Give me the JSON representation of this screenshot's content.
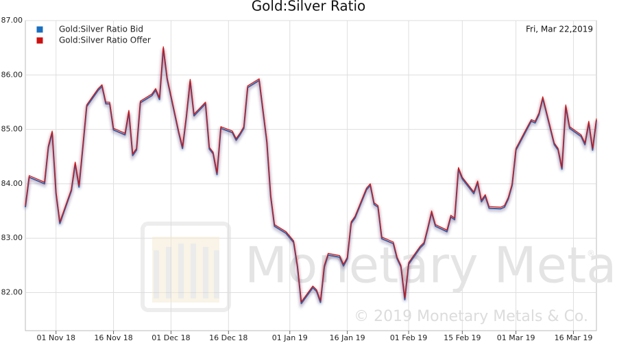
{
  "chart_data": {
    "type": "line",
    "title": "Gold:Silver Ratio",
    "date_label": "Fri, Mar 22,2019",
    "watermark": {
      "brand": "Monetary Metals",
      "registered": "®",
      "copyright": "© 2019 Monetary Metals & Co."
    },
    "legend": "top-left",
    "grid": true,
    "x": [
      "2018-10-24",
      "2018-10-25",
      "2018-10-26",
      "2018-10-29",
      "2018-10-30",
      "2018-10-31",
      "2018-11-01",
      "2018-11-02",
      "2018-11-05",
      "2018-11-06",
      "2018-11-07",
      "2018-11-08",
      "2018-11-09",
      "2018-11-12",
      "2018-11-13",
      "2018-11-14",
      "2018-11-15",
      "2018-11-16",
      "2018-11-19",
      "2018-11-20",
      "2018-11-21",
      "2018-11-22",
      "2018-11-23",
      "2018-11-26",
      "2018-11-27",
      "2018-11-28",
      "2018-11-29",
      "2018-11-30",
      "2018-12-03",
      "2018-12-04",
      "2018-12-05",
      "2018-12-06",
      "2018-12-07",
      "2018-12-10",
      "2018-12-11",
      "2018-12-12",
      "2018-12-13",
      "2018-12-14",
      "2018-12-17",
      "2018-12-18",
      "2018-12-19",
      "2018-12-20",
      "2018-12-21",
      "2018-12-24",
      "2018-12-26",
      "2018-12-27",
      "2018-12-28",
      "2018-12-31",
      "2019-01-02",
      "2019-01-03",
      "2019-01-04",
      "2019-01-07",
      "2019-01-08",
      "2019-01-09",
      "2019-01-10",
      "2019-01-11",
      "2019-01-14",
      "2019-01-15",
      "2019-01-16",
      "2019-01-17",
      "2019-01-18",
      "2019-01-21",
      "2019-01-22",
      "2019-01-23",
      "2019-01-24",
      "2019-01-25",
      "2019-01-28",
      "2019-01-29",
      "2019-01-30",
      "2019-01-31",
      "2019-02-01",
      "2019-02-04",
      "2019-02-05",
      "2019-02-06",
      "2019-02-07",
      "2019-02-08",
      "2019-02-11",
      "2019-02-12",
      "2019-02-13",
      "2019-02-14",
      "2019-02-15",
      "2019-02-18",
      "2019-02-19",
      "2019-02-20",
      "2019-02-21",
      "2019-02-22",
      "2019-02-25",
      "2019-02-26",
      "2019-02-27",
      "2019-02-28",
      "2019-03-01",
      "2019-03-04",
      "2019-03-05",
      "2019-03-06",
      "2019-03-07",
      "2019-03-08",
      "2019-03-11",
      "2019-03-12",
      "2019-03-13",
      "2019-03-14",
      "2019-03-15",
      "2019-03-18",
      "2019-03-19",
      "2019-03-20",
      "2019-03-21",
      "2019-03-22"
    ],
    "series": [
      {
        "name": "Gold:Silver Ratio Bid",
        "color": "#1a6fc0",
        "values": [
          83.57,
          84.12,
          84.09,
          84.0,
          84.67,
          84.94,
          83.82,
          83.27,
          83.87,
          84.37,
          83.94,
          84.67,
          85.42,
          85.72,
          85.79,
          85.47,
          85.47,
          84.99,
          84.9,
          85.32,
          84.52,
          84.62,
          85.49,
          85.62,
          85.72,
          85.55,
          86.49,
          85.92,
          84.94,
          84.65,
          85.22,
          85.89,
          85.25,
          85.47,
          84.64,
          84.55,
          84.17,
          85.02,
          84.94,
          84.8,
          84.9,
          85.02,
          85.77,
          85.9,
          84.77,
          83.77,
          83.22,
          83.09,
          82.92,
          82.47,
          81.8,
          82.09,
          82.02,
          81.82,
          82.47,
          82.69,
          82.65,
          82.49,
          82.62,
          83.27,
          83.37,
          83.89,
          83.97,
          83.62,
          83.57,
          82.99,
          82.9,
          82.62,
          82.47,
          81.87,
          82.52,
          82.82,
          82.89,
          83.17,
          83.47,
          83.22,
          83.12,
          83.39,
          83.34,
          84.27,
          84.09,
          83.82,
          84.02,
          83.67,
          83.77,
          83.55,
          83.54,
          83.57,
          83.72,
          83.97,
          84.62,
          85.02,
          85.15,
          85.12,
          85.27,
          85.57,
          84.72,
          84.62,
          84.27,
          85.42,
          85.02,
          84.87,
          84.72,
          85.12,
          84.62,
          85.17
        ]
      },
      {
        "name": "Gold:Silver Ratio Offer",
        "color": "#cc1111",
        "values": [
          83.6,
          84.15,
          84.12,
          84.03,
          84.7,
          84.97,
          83.85,
          83.3,
          83.9,
          84.4,
          83.97,
          84.7,
          85.45,
          85.75,
          85.82,
          85.5,
          85.5,
          85.02,
          84.93,
          85.35,
          84.55,
          84.65,
          85.52,
          85.65,
          85.75,
          85.58,
          86.52,
          85.95,
          84.97,
          84.68,
          85.25,
          85.92,
          85.28,
          85.5,
          84.67,
          84.58,
          84.2,
          85.05,
          84.97,
          84.83,
          84.93,
          85.05,
          85.8,
          85.93,
          84.8,
          83.8,
          83.25,
          83.12,
          82.95,
          82.5,
          81.83,
          82.12,
          82.05,
          81.85,
          82.5,
          82.72,
          82.68,
          82.52,
          82.65,
          83.3,
          83.4,
          83.92,
          84.0,
          83.65,
          83.6,
          83.02,
          82.93,
          82.65,
          82.5,
          81.9,
          82.55,
          82.85,
          82.92,
          83.2,
          83.5,
          83.25,
          83.15,
          83.42,
          83.37,
          84.3,
          84.12,
          83.85,
          84.05,
          83.7,
          83.8,
          83.58,
          83.57,
          83.6,
          83.75,
          84.0,
          84.65,
          85.05,
          85.18,
          85.15,
          85.3,
          85.6,
          84.75,
          84.65,
          84.3,
          85.45,
          85.05,
          84.9,
          84.75,
          85.15,
          84.65,
          85.2
        ]
      }
    ],
    "xlim": [
      "2018-10-24",
      "2019-03-22"
    ],
    "xticks": [
      {
        "value": "2018-11-01",
        "label": "01 Nov 18"
      },
      {
        "value": "2018-11-16",
        "label": "16 Nov 18"
      },
      {
        "value": "2018-12-01",
        "label": "01 Dec 18"
      },
      {
        "value": "2018-12-16",
        "label": "16 Dec 18"
      },
      {
        "value": "2019-01-01",
        "label": "01 Jan 19"
      },
      {
        "value": "2019-01-16",
        "label": "16 Jan 19"
      },
      {
        "value": "2019-02-01",
        "label": "01 Feb 19"
      },
      {
        "value": "2019-02-15",
        "label": "15 Feb 19"
      },
      {
        "value": "2019-03-01",
        "label": "01 Mar 19"
      },
      {
        "value": "2019-03-16",
        "label": "16 Mar 19"
      }
    ],
    "ylim": [
      81.3,
      87
    ],
    "yticks": [
      {
        "value": 82,
        "label": "82.00"
      },
      {
        "value": 83,
        "label": "83.00"
      },
      {
        "value": 84,
        "label": "84.00"
      },
      {
        "value": 85,
        "label": "85.00"
      },
      {
        "value": 86,
        "label": "86.00"
      },
      {
        "value": 87,
        "label": "87.00"
      }
    ]
  }
}
